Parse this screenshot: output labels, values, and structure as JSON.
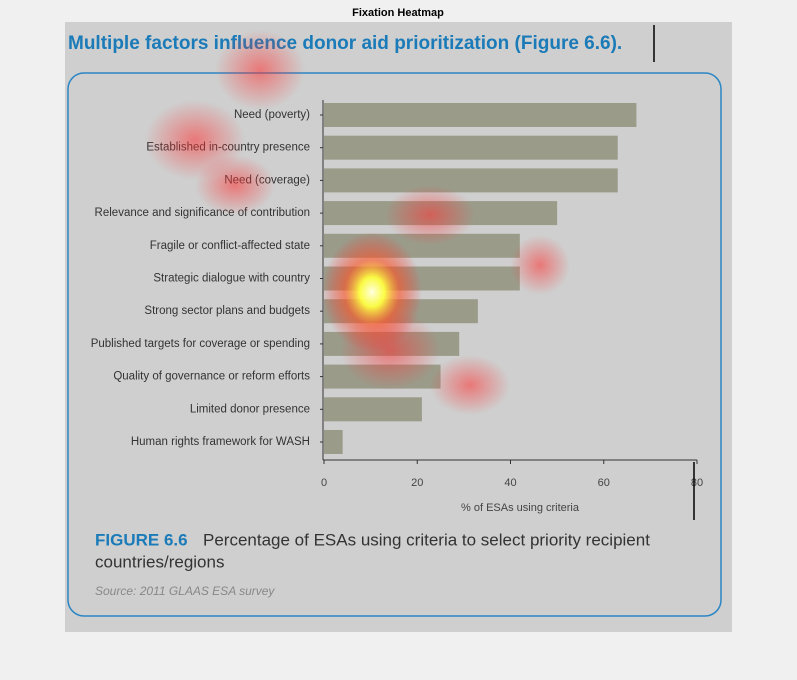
{
  "chart_data": {
    "type": "bar",
    "orientation": "horizontal",
    "title": "Fixation Heatmap",
    "subtitle": "Multiple factors influence donor aid prioritization (Figure 6.6).",
    "categories": [
      "Need (poverty)",
      "Established in-country presence",
      "Need (coverage)",
      "Relevance and significance of contribution",
      "Fragile or conflict-affected state",
      "Strategic dialogue with country",
      "Strong sector plans and budgets",
      "Published targets for coverage or spending",
      "Quality of governance or reform efforts",
      "Limited donor presence",
      "Human rights framework for WASH"
    ],
    "values": [
      67,
      63,
      63,
      50,
      42,
      42,
      33,
      29,
      25,
      21,
      4
    ],
    "color": "#9b9b8a",
    "xlim": [
      0,
      80
    ],
    "xticks": [
      0,
      20,
      40,
      60,
      80
    ],
    "xlabel": "% of ESAs using criteria",
    "annotations": [
      "FIGURE 6.6",
      "Percentage of ESAs using criteria to select priority recipient",
      "countries/regions"
    ],
    "source": "Source: 2011 GLAAS ESA survey"
  }
}
